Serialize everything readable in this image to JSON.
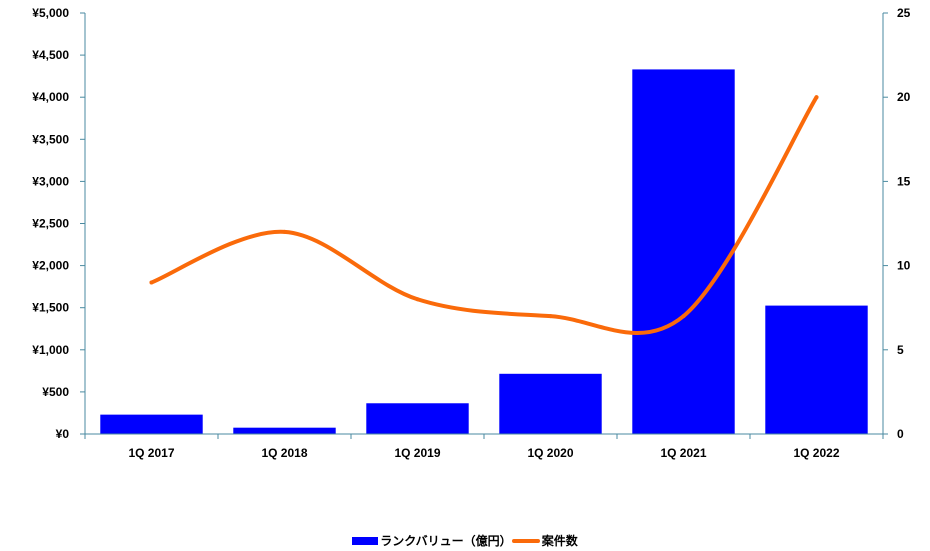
{
  "chart_data": {
    "type": "bar",
    "categories": [
      "1Q 2017",
      "1Q 2018",
      "1Q 2019",
      "1Q 2020",
      "1Q 2021",
      "1Q 2022"
    ],
    "series": [
      {
        "name": "ランクバリュー（億円）",
        "type": "bar",
        "axis": "left",
        "color": "#0000ff",
        "values": [
          230,
          75,
          365,
          715,
          4330,
          1525
        ]
      },
      {
        "name": "案件数",
        "type": "line",
        "axis": "right",
        "color": "#fa6a0a",
        "values": [
          9,
          12,
          8,
          7,
          7,
          20
        ]
      }
    ],
    "y_left": {
      "ylim": [
        0,
        5000
      ],
      "tick_labels": [
        "¥0",
        "¥500",
        "¥1,000",
        "¥1,500",
        "¥2,000",
        "¥2,500",
        "¥3,000",
        "¥3,500",
        "¥4,000",
        "¥4,500",
        "¥5,000"
      ]
    },
    "y_right": {
      "ylim": [
        0,
        25
      ],
      "tick_labels": [
        "0",
        "5",
        "10",
        "15",
        "20",
        "25"
      ]
    },
    "grid": false,
    "legend_position": "bottom",
    "title": "",
    "xlabel": "",
    "ylabel": ""
  }
}
